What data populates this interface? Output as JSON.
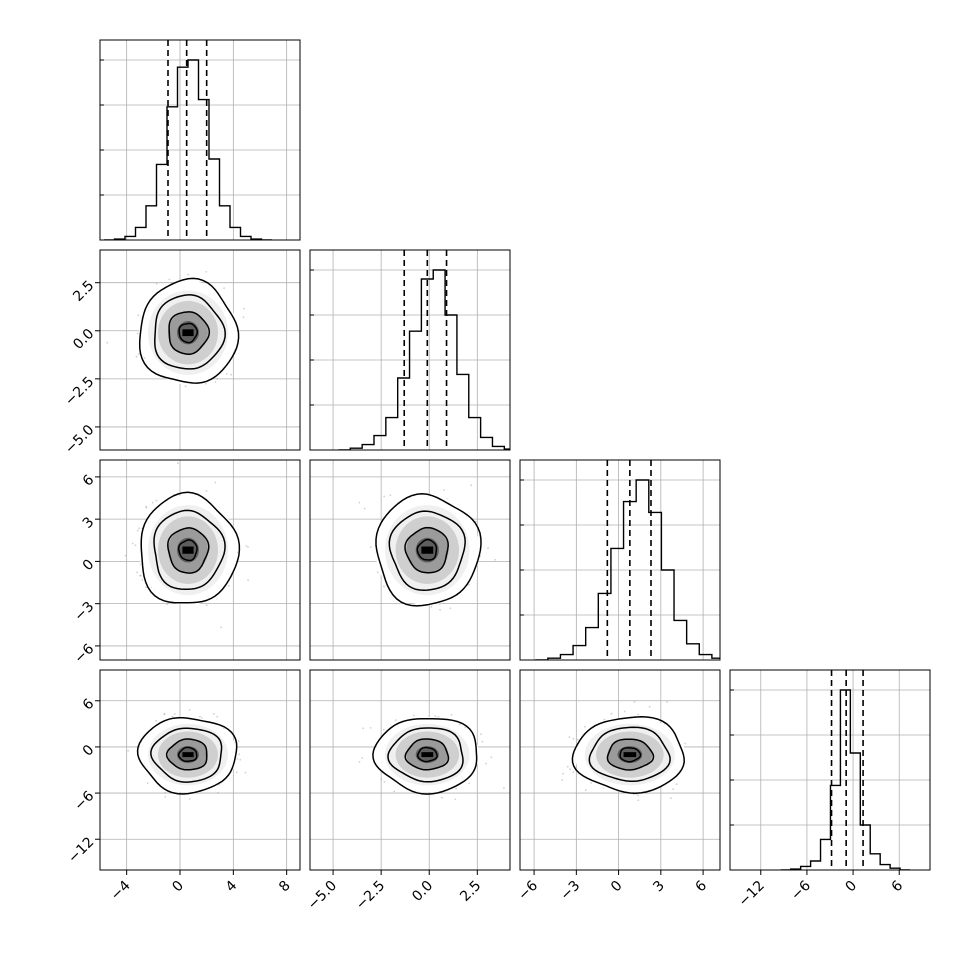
{
  "chart_data": {
    "type": "corner",
    "grid": true,
    "params": [
      {
        "range": [
          -6,
          9
        ],
        "ticks": [
          -4,
          0,
          4,
          8
        ],
        "tick_labels": [
          "−4",
          "0",
          "4",
          "8"
        ],
        "quantiles": [
          -0.9,
          0.5,
          2.0
        ],
        "mean": 0.6,
        "sd": 1.5
      },
      {
        "range": [
          -6.2,
          4.2
        ],
        "ticks": [
          -5,
          -2.5,
          0,
          2.5
        ],
        "tick_labels": [
          "−5.0",
          "−2.5",
          "0.0",
          "2.5"
        ],
        "quantiles": [
          -1.3,
          -0.1,
          0.9
        ],
        "mean": -0.1,
        "sd": 1.1
      },
      {
        "range": [
          -7,
          7.2
        ],
        "ticks": [
          -6,
          -3,
          0,
          3,
          6
        ],
        "tick_labels": [
          "−6",
          "−3",
          "0",
          "3",
          "6"
        ],
        "quantiles": [
          -0.8,
          0.8,
          2.3
        ],
        "mean": 0.8,
        "sd": 1.6
      },
      {
        "range": [
          -16,
          10
        ],
        "ticks": [
          -12,
          -6,
          0,
          6
        ],
        "tick_labels": [
          "−12",
          "−6",
          "0",
          "6"
        ],
        "y_ticks": [
          -12,
          -6,
          0,
          6
        ],
        "y_tick_labels": [
          "−12",
          "−6",
          "0",
          "6"
        ],
        "quantiles": [
          -2.8,
          -0.9,
          1.3
        ],
        "mean": -1.0,
        "sd": 2.0
      }
    ],
    "histogram_bins": [
      [
        0.0,
        0.005,
        0.02,
        0.07,
        0.19,
        0.42,
        0.74,
        0.96,
        1.0,
        0.78,
        0.45,
        0.19,
        0.07,
        0.02,
        0.005,
        0.0
      ],
      [
        0.0,
        0.01,
        0.03,
        0.08,
        0.18,
        0.4,
        0.66,
        0.95,
        1.0,
        0.75,
        0.42,
        0.18,
        0.07,
        0.02,
        0.005
      ],
      [
        0.0,
        0.01,
        0.03,
        0.08,
        0.18,
        0.37,
        0.62,
        0.88,
        1.0,
        0.82,
        0.5,
        0.22,
        0.09,
        0.03,
        0.01
      ],
      [
        0.0,
        0.005,
        0.02,
        0.05,
        0.17,
        0.47,
        1.0,
        0.65,
        0.25,
        0.09,
        0.03,
        0.01,
        0.0
      ]
    ],
    "pair_plots": [
      {
        "x": 0,
        "y": 1,
        "center": [
          0.6,
          -0.1
        ],
        "spread": [
          1.5,
          1.1
        ]
      },
      {
        "x": 0,
        "y": 2,
        "center": [
          0.6,
          0.8
        ],
        "spread": [
          1.5,
          1.6
        ]
      },
      {
        "x": 1,
        "y": 2,
        "center": [
          -0.1,
          0.8
        ],
        "spread": [
          1.1,
          1.6
        ]
      },
      {
        "x": 0,
        "y": 3,
        "center": [
          0.6,
          -1.0
        ],
        "spread": [
          1.5,
          2.0
        ]
      },
      {
        "x": 1,
        "y": 3,
        "center": [
          -0.1,
          -1.0
        ],
        "spread": [
          1.1,
          2.0
        ]
      },
      {
        "x": 2,
        "y": 3,
        "center": [
          0.8,
          -1.0
        ],
        "spread": [
          1.6,
          2.0
        ]
      }
    ]
  }
}
